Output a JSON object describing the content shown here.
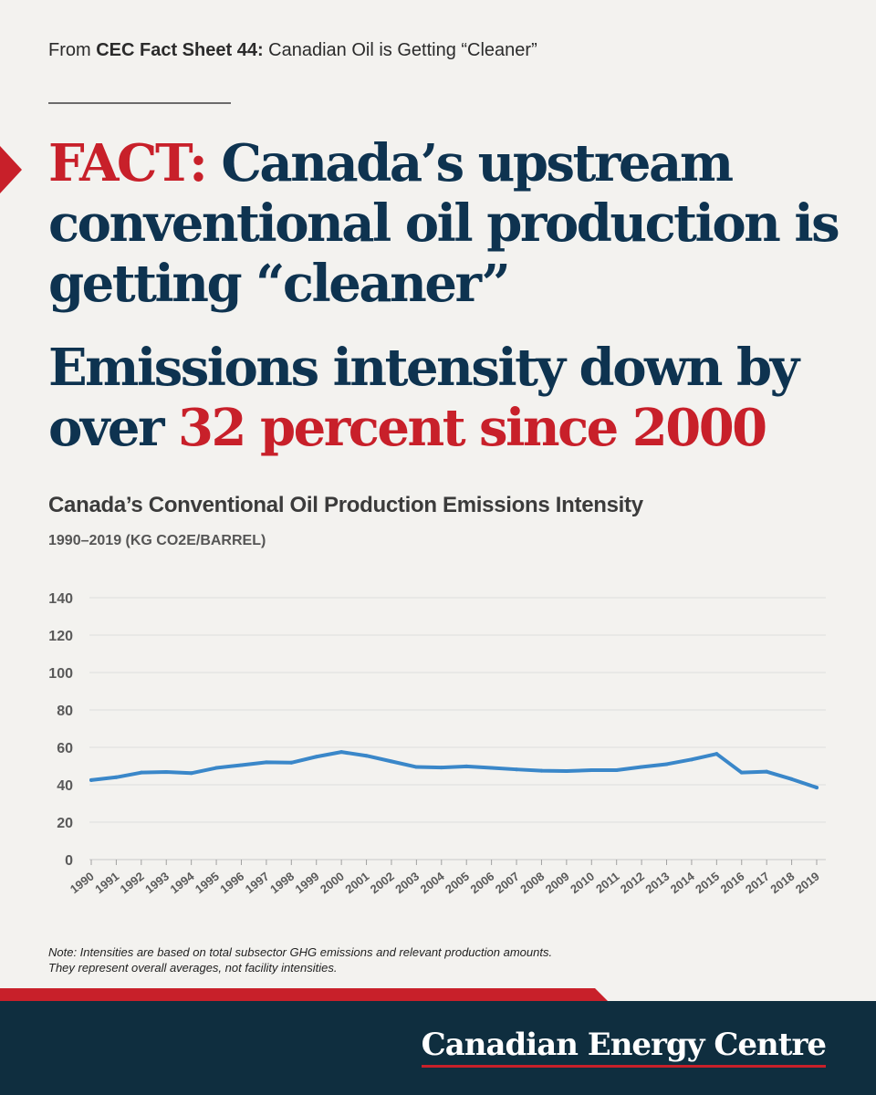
{
  "header": {
    "source_prefix": "From ",
    "source_bold": "CEC Fact Sheet 44:",
    "source_rest": " Canadian Oil is Getting “Cleaner”"
  },
  "headline": {
    "fact_label": "FACT:",
    "fact_text": " Canada’s upstream conventional oil production is getting “cleaner”",
    "stat_text_1": "Emissions intensity down by over ",
    "stat_text_red": "32 percent since 2000"
  },
  "colors": {
    "navy": "#0e3350",
    "red": "#c8202a",
    "line": "#3a87c9",
    "footer": "#0f2e3f"
  },
  "chart_data": {
    "type": "line",
    "title": "Canada’s Conventional Oil Production Emissions Intensity",
    "subtitle": "1990–2019 (KG CO2E/BARREL)",
    "xlabel": "",
    "ylabel": "",
    "ylim": [
      0,
      140
    ],
    "yticks": [
      "0",
      "20",
      "40",
      "60",
      "80",
      "100",
      "120",
      "140"
    ],
    "grid": true,
    "categories": [
      "1990",
      "1991",
      "1992",
      "1993",
      "1994",
      "1995",
      "1996",
      "1997",
      "1998",
      "1999",
      "2000",
      "2001",
      "2002",
      "2003",
      "2004",
      "2005",
      "2006",
      "2007",
      "2008",
      "2009",
      "2010",
      "2011",
      "2012",
      "2013",
      "2014",
      "2015",
      "2016",
      "2017",
      "2018",
      "2019"
    ],
    "series": [
      {
        "values": [
          42.5,
          44,
          46.5,
          46.8,
          46.2,
          49,
          50.5,
          52,
          51.8,
          55,
          57.5,
          55.5,
          52.5,
          49.5,
          49.2,
          49.8,
          49,
          48.2,
          47.5,
          47.3,
          47.8,
          47.8,
          49.5,
          51,
          53.5,
          56.5,
          46.5,
          47,
          43,
          38.5
        ]
      }
    ]
  },
  "note": {
    "line1": "Note: Intensities are based on total subsector GHG emissions and relevant production amounts.",
    "line2": "They represent overall averages, not facility intensities."
  },
  "footer": {
    "brand": "Canadian Energy Centre"
  }
}
